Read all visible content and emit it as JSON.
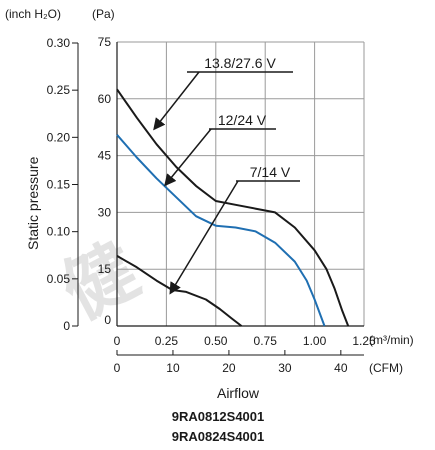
{
  "chart_data": {
    "type": "line",
    "xlabel": "Airflow",
    "ylabel": "Static pressure",
    "x_unit": "(m³/min)",
    "x2_unit": "(CFM)",
    "y_unit": "(Pa)",
    "y2_unit": "(inch H₂O)",
    "xlim": [
      0,
      1.25
    ],
    "ylim": [
      0,
      75
    ],
    "x2lim": [
      0,
      44.14
    ],
    "x_ticks": [
      "0",
      "0.25",
      "0.50",
      "0.75",
      "1.00",
      "1.25"
    ],
    "x2_ticks": [
      "0",
      "10",
      "20",
      "30",
      "40"
    ],
    "y_ticks": [
      "0",
      "15",
      "30",
      "45",
      "60",
      "75"
    ],
    "y2_ticks": [
      "0",
      "0.05",
      "0.10",
      "0.15",
      "0.20",
      "0.25",
      "0.30"
    ],
    "grid": true,
    "series": [
      {
        "name": "13.8/27.6 V",
        "color": "#1a1a1a",
        "x": [
          0,
          0.1,
          0.2,
          0.3,
          0.4,
          0.5,
          0.6,
          0.7,
          0.8,
          0.9,
          1.0,
          1.06,
          1.1,
          1.14,
          1.17
        ],
        "y": [
          62.5,
          55,
          48,
          42,
          37,
          33,
          32,
          31,
          30,
          26,
          20,
          15,
          10,
          4,
          0
        ]
      },
      {
        "name": "12/24 V",
        "color": "#1f6fb2",
        "x": [
          0,
          0.1,
          0.2,
          0.3,
          0.4,
          0.5,
          0.6,
          0.7,
          0.8,
          0.9,
          0.96,
          1.0,
          1.05
        ],
        "y": [
          50.5,
          44.5,
          39,
          34,
          29,
          26.5,
          26,
          25,
          22,
          17,
          12,
          7,
          0
        ]
      },
      {
        "name": "7/14 V",
        "color": "#1a1a1a",
        "x": [
          0,
          0.1,
          0.2,
          0.28,
          0.35,
          0.45,
          0.52,
          0.58,
          0.63
        ],
        "y": [
          18.5,
          15.5,
          12,
          9.5,
          9,
          7,
          4.5,
          2,
          0
        ]
      }
    ],
    "annotations": [
      "13.8/27.6 V",
      "12/24 V",
      "7/14 V"
    ]
  },
  "models": [
    "9RA0812S4001",
    "9RA0824S4001"
  ],
  "watermark": "健"
}
